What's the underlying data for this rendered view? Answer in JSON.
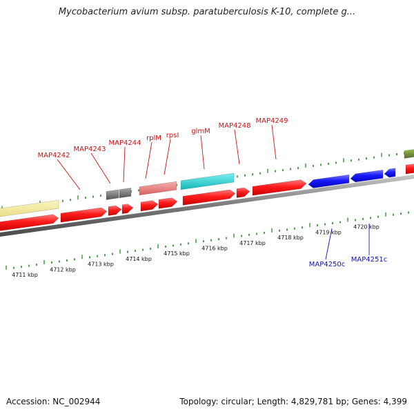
{
  "title": "Mycobacterium avium subsp. paratuberculosis K-10, complete g...",
  "footer": {
    "accession": "Accession: NC_002944",
    "summary": "Topology: circular; Length: 4,829,781 bp; Genes: 4,399"
  },
  "ruler_labels": [
    "4711 kbp",
    "4712 kbp",
    "4713 kbp",
    "4714 kbp",
    "4715 kbp",
    "4716 kbp",
    "4717 kbp",
    "4718 kbp",
    "4719 kbp",
    "4720 kbp"
  ],
  "genes_forward": [
    "MAP4242",
    "MAP4243",
    "MAP4244",
    "rplM",
    "rpsI",
    "glmM",
    "MAP4248",
    "MAP4249"
  ],
  "genes_reverse": [
    "MAP4250c",
    "MAP4251c"
  ],
  "colors": {
    "forward_cds": "#ff1a1a",
    "reverse_cds": "#1a1aff",
    "gc_ticks": "#228b22",
    "backbone": "#8a8a8a",
    "rrna": "#f0e68c",
    "trna": "#787878",
    "feature_pink": "#e87878",
    "feature_cyan": "#20d0d0",
    "feature_olive": "#6b8e23",
    "label_forward": "#cc1111",
    "label_reverse": "#1111bb"
  }
}
